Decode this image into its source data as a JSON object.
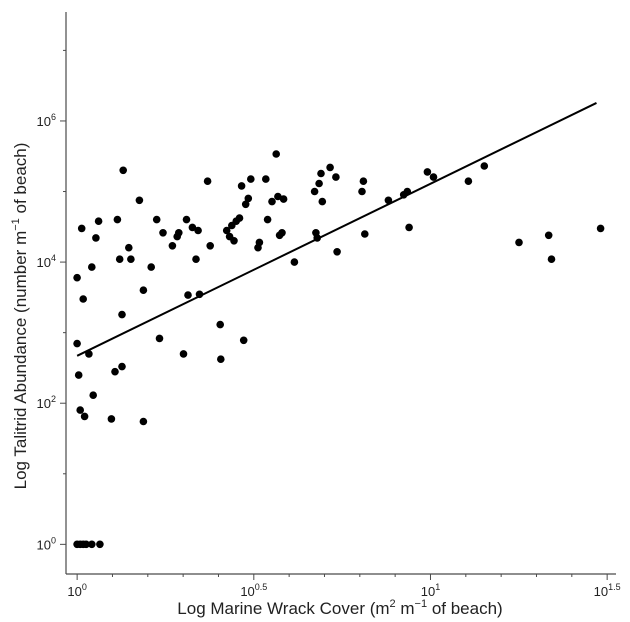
{
  "chart_data": {
    "type": "scatter",
    "title": "",
    "xlabel": {
      "text": "Log Marine Wrack Cover (m",
      "sup1": "2",
      "mid": " m",
      "sup2": "−1",
      "end": " of beach)"
    },
    "ylabel": {
      "text": "Log Talitrid Abundance (number m",
      "sup": "−1",
      "end": " of beach)"
    },
    "x_scale": "log10",
    "y_scale": "log10",
    "xlim": [
      0.93,
      33.5
    ],
    "ylim": [
      0.38,
      35000000
    ],
    "x_ticks": [
      {
        "value": 1,
        "base": "10",
        "exp": "0"
      },
      {
        "value": 3.1623,
        "base": "10",
        "exp": "0.5"
      },
      {
        "value": 10,
        "base": "10",
        "exp": "1"
      },
      {
        "value": 31.623,
        "base": "10",
        "exp": "1.5"
      }
    ],
    "y_ticks": [
      {
        "value": 1,
        "base": "10",
        "exp": "0"
      },
      {
        "value": 100,
        "base": "10",
        "exp": "2"
      },
      {
        "value": 10000,
        "base": "10",
        "exp": "4"
      },
      {
        "value": 1000000,
        "base": "10",
        "exp": "6"
      }
    ],
    "fit_line": {
      "x": [
        1.0,
        29.5
      ],
      "y": [
        470,
        1800000
      ]
    },
    "points": [
      [
        1.0,
        1
      ],
      [
        1.02,
        1
      ],
      [
        1.04,
        1
      ],
      [
        1.06,
        1
      ],
      [
        1.1,
        1
      ],
      [
        1.16,
        1
      ],
      [
        1.0,
        6000
      ],
      [
        1.0,
        700
      ],
      [
        1.01,
        250
      ],
      [
        1.02,
        80
      ],
      [
        1.03,
        30000
      ],
      [
        1.04,
        3000
      ],
      [
        1.05,
        65
      ],
      [
        1.08,
        500
      ],
      [
        1.1,
        8500
      ],
      [
        1.11,
        130
      ],
      [
        1.13,
        22000
      ],
      [
        1.15,
        38000
      ],
      [
        1.25,
        60
      ],
      [
        1.28,
        280
      ],
      [
        1.3,
        40000
      ],
      [
        1.32,
        11000
      ],
      [
        1.34,
        1800
      ],
      [
        1.35,
        200000
      ],
      [
        1.34,
        330
      ],
      [
        1.4,
        16000
      ],
      [
        1.42,
        11000
      ],
      [
        1.5,
        75000
      ],
      [
        1.54,
        55
      ],
      [
        1.54,
        4000
      ],
      [
        1.62,
        8500
      ],
      [
        1.68,
        40000
      ],
      [
        1.71,
        830
      ],
      [
        1.75,
        26000
      ],
      [
        1.86,
        17000
      ],
      [
        1.92,
        23000
      ],
      [
        1.94,
        26000
      ],
      [
        2.0,
        500
      ],
      [
        2.04,
        40000
      ],
      [
        2.06,
        3400
      ],
      [
        2.12,
        31000
      ],
      [
        2.17,
        11000
      ],
      [
        2.2,
        28000
      ],
      [
        2.22,
        3500
      ],
      [
        2.34,
        140000
      ],
      [
        2.38,
        17000
      ],
      [
        2.54,
        1300
      ],
      [
        2.55,
        420
      ],
      [
        2.65,
        28000
      ],
      [
        2.7,
        23000
      ],
      [
        2.74,
        33000
      ],
      [
        2.78,
        20000
      ],
      [
        2.82,
        38000
      ],
      [
        2.88,
        42000
      ],
      [
        2.92,
        120000
      ],
      [
        2.96,
        780
      ],
      [
        3.0,
        66000
      ],
      [
        3.05,
        80000
      ],
      [
        3.1,
        150000
      ],
      [
        3.25,
        16000
      ],
      [
        3.28,
        19000
      ],
      [
        3.42,
        150000
      ],
      [
        3.46,
        40000
      ],
      [
        3.56,
        72000
      ],
      [
        3.66,
        340000
      ],
      [
        3.7,
        85000
      ],
      [
        3.74,
        24000
      ],
      [
        3.8,
        26000
      ],
      [
        3.84,
        78000
      ],
      [
        4.12,
        10000
      ],
      [
        4.7,
        100000
      ],
      [
        4.74,
        26000
      ],
      [
        4.78,
        22000
      ],
      [
        4.84,
        130000
      ],
      [
        4.9,
        180000
      ],
      [
        4.94,
        72000
      ],
      [
        5.2,
        220000
      ],
      [
        5.4,
        160000
      ],
      [
        5.44,
        14000
      ],
      [
        6.4,
        100000
      ],
      [
        6.46,
        140000
      ],
      [
        6.52,
        25000
      ],
      [
        7.6,
        75000
      ],
      [
        8.4,
        90000
      ],
      [
        8.6,
        100000
      ],
      [
        8.7,
        31000
      ],
      [
        9.8,
        190000
      ],
      [
        10.2,
        160000
      ],
      [
        12.8,
        140000
      ],
      [
        14.2,
        230000
      ],
      [
        17.8,
        19000
      ],
      [
        21.6,
        24000
      ],
      [
        22.0,
        11000
      ],
      [
        30.3,
        30000
      ]
    ]
  }
}
